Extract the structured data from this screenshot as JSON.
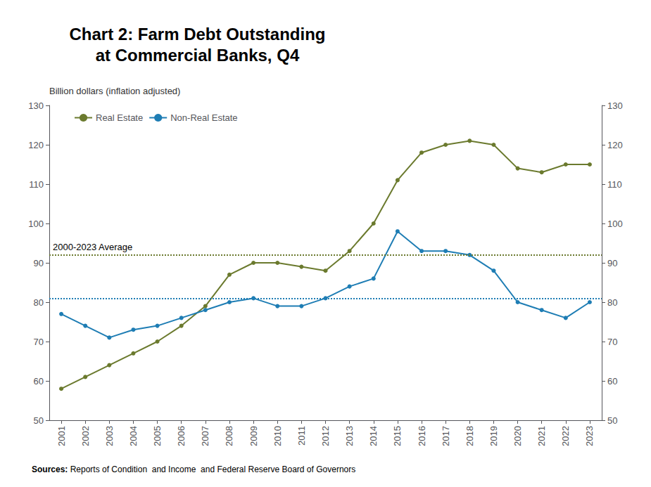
{
  "chart_data": {
    "type": "line",
    "title": "Chart 2: Farm Debt Outstanding\nat Commercial Banks, Q4",
    "ylabel": "Billion dollars (inflation adjusted)",
    "source": "Sources: Reports of Condition  and Income  and Federal Reserve Board of Governors",
    "annotation": "2000-2023 Average",
    "x": [
      2001,
      2002,
      2003,
      2004,
      2005,
      2006,
      2007,
      2008,
      2009,
      2010,
      2011,
      2012,
      2013,
      2014,
      2015,
      2016,
      2017,
      2018,
      2019,
      2020,
      2021,
      2022,
      2023
    ],
    "series": [
      {
        "name": "Real Estate",
        "color": "#6b7a2e",
        "marker": "circle",
        "values": [
          58,
          61,
          64,
          67,
          70,
          74,
          79,
          87,
          90,
          90,
          89,
          88,
          93,
          100,
          111,
          118,
          120,
          121,
          120,
          114,
          113,
          115,
          115
        ],
        "average": 92
      },
      {
        "name": "Non-Real Estate",
        "color": "#1e7db4",
        "marker": "circle",
        "values": [
          77,
          74,
          71,
          73,
          74,
          76,
          78,
          80,
          81,
          79,
          79,
          81,
          84,
          86,
          98,
          93,
          93,
          92,
          88,
          80,
          78,
          76,
          80
        ],
        "average": 81
      }
    ],
    "xlim": [
      2000.5,
      2023.5
    ],
    "xticks": [
      2001,
      2002,
      2003,
      2004,
      2005,
      2006,
      2007,
      2008,
      2009,
      2010,
      2011,
      2012,
      2013,
      2014,
      2015,
      2016,
      2017,
      2018,
      2019,
      2020,
      2021,
      2022,
      2023
    ],
    "ylim": [
      50,
      130
    ],
    "yticks": [
      50,
      60,
      70,
      80,
      90,
      100,
      110,
      120,
      130
    ],
    "y2lim": [
      50,
      130
    ],
    "y2ticks": [
      50,
      60,
      70,
      80,
      90,
      100,
      110,
      120,
      130
    ],
    "legend": "upper left",
    "grid": false
  }
}
